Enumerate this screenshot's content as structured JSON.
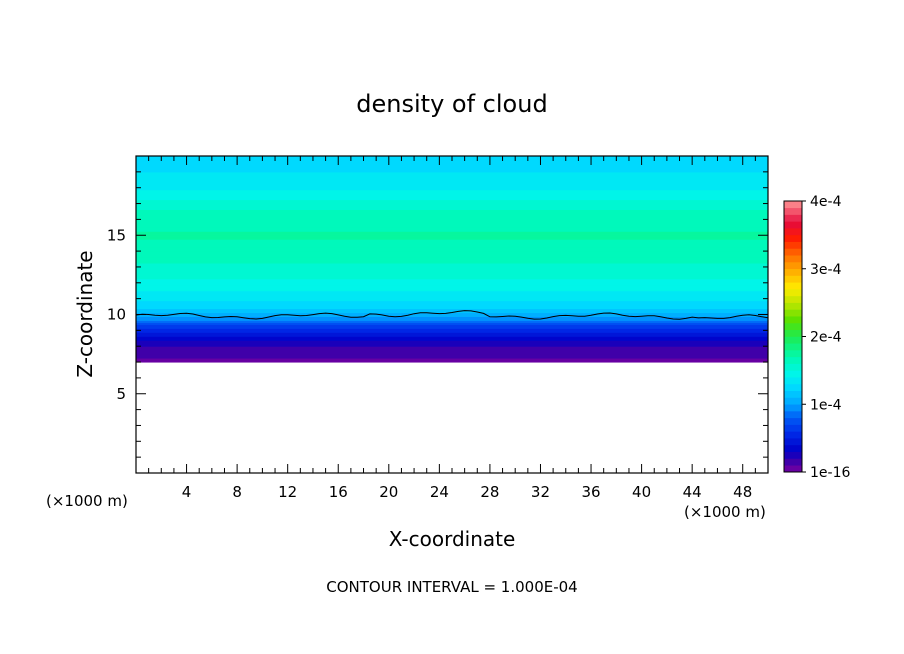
{
  "chart_data": {
    "type": "heatmap",
    "title": "density of cloud",
    "xlabel": "X-coordinate",
    "ylabel": "Z-coordinate",
    "x_unit_left": "(×1000 m)",
    "x_unit_right": "(×1000 m)",
    "xlim": [
      0,
      50
    ],
    "ylim": [
      0,
      20
    ],
    "xticks": [
      4,
      8,
      12,
      16,
      20,
      24,
      28,
      32,
      36,
      40,
      44,
      48
    ],
    "yticks": [
      5,
      10,
      15
    ],
    "colorbar": {
      "min": 0,
      "max": 0.0004,
      "tick_labels": [
        "4e-4",
        "3e-4",
        "2e-4",
        "1e-4",
        "1e-16"
      ],
      "tick_values": [
        0.0004,
        0.0003,
        0.0002,
        0.0001,
        0
      ]
    },
    "annotation": "CONTOUR INTERVAL = 1.000E-04",
    "cloud_base_km": 7.0,
    "contour_1e-4_height_km": 9.9,
    "profile": [
      {
        "z": 7.0,
        "v": 2e-06
      },
      {
        "z": 7.4,
        "v": 6e-06
      },
      {
        "z": 7.8,
        "v": 1.2e-05
      },
      {
        "z": 8.3,
        "v": 2.2e-05
      },
      {
        "z": 8.8,
        "v": 4e-05
      },
      {
        "z": 9.3,
        "v": 6e-05
      },
      {
        "z": 9.9,
        "v": 0.0001
      },
      {
        "z": 10.4,
        "v": 0.000115
      },
      {
        "z": 11.0,
        "v": 0.000128
      },
      {
        "z": 12.0,
        "v": 0.000142
      },
      {
        "z": 13.5,
        "v": 0.000158
      },
      {
        "z": 15.0,
        "v": 0.000166
      },
      {
        "z": 16.5,
        "v": 0.000158
      },
      {
        "z": 17.5,
        "v": 0.00014
      },
      {
        "z": 18.5,
        "v": 0.000128
      },
      {
        "z": 20.0,
        "v": 0.000118
      }
    ]
  }
}
